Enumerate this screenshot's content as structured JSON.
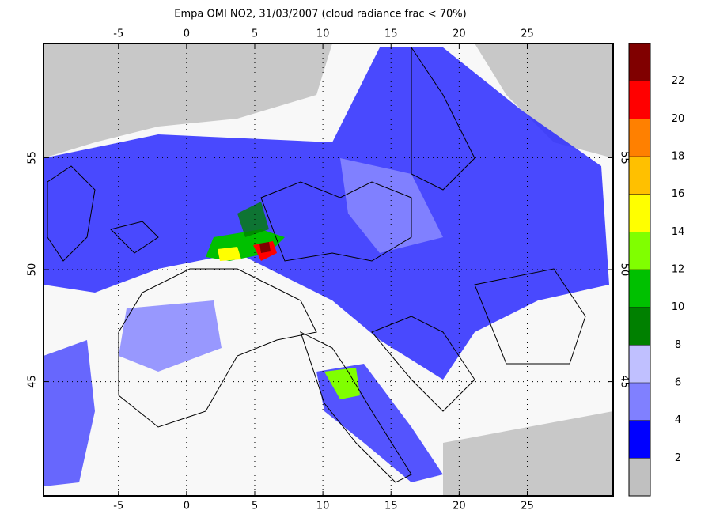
{
  "chart_data": {
    "type": "map",
    "title": "Empa OMI NO2, 31/03/2007 (cloud radiance frac < 70%)",
    "xlim": [
      -10.5,
      31.3
    ],
    "ylim": [
      39.9,
      60.1
    ],
    "xticks": [
      -5,
      0,
      5,
      10,
      15,
      20,
      25
    ],
    "yticks": [
      45,
      50,
      55
    ],
    "grid": true,
    "colorbar": {
      "lim": [
        0,
        24
      ],
      "ticks": [
        2,
        4,
        6,
        8,
        10,
        12,
        14,
        16,
        18,
        20,
        22
      ],
      "colors": [
        "#c0c0c0",
        "#0000ff",
        "#8080ff",
        "#c0c0ff",
        "#008000",
        "#00c000",
        "#80ff00",
        "#ffff00",
        "#ffc000",
        "#ff8000",
        "#ff0000",
        "#800000"
      ]
    }
  }
}
